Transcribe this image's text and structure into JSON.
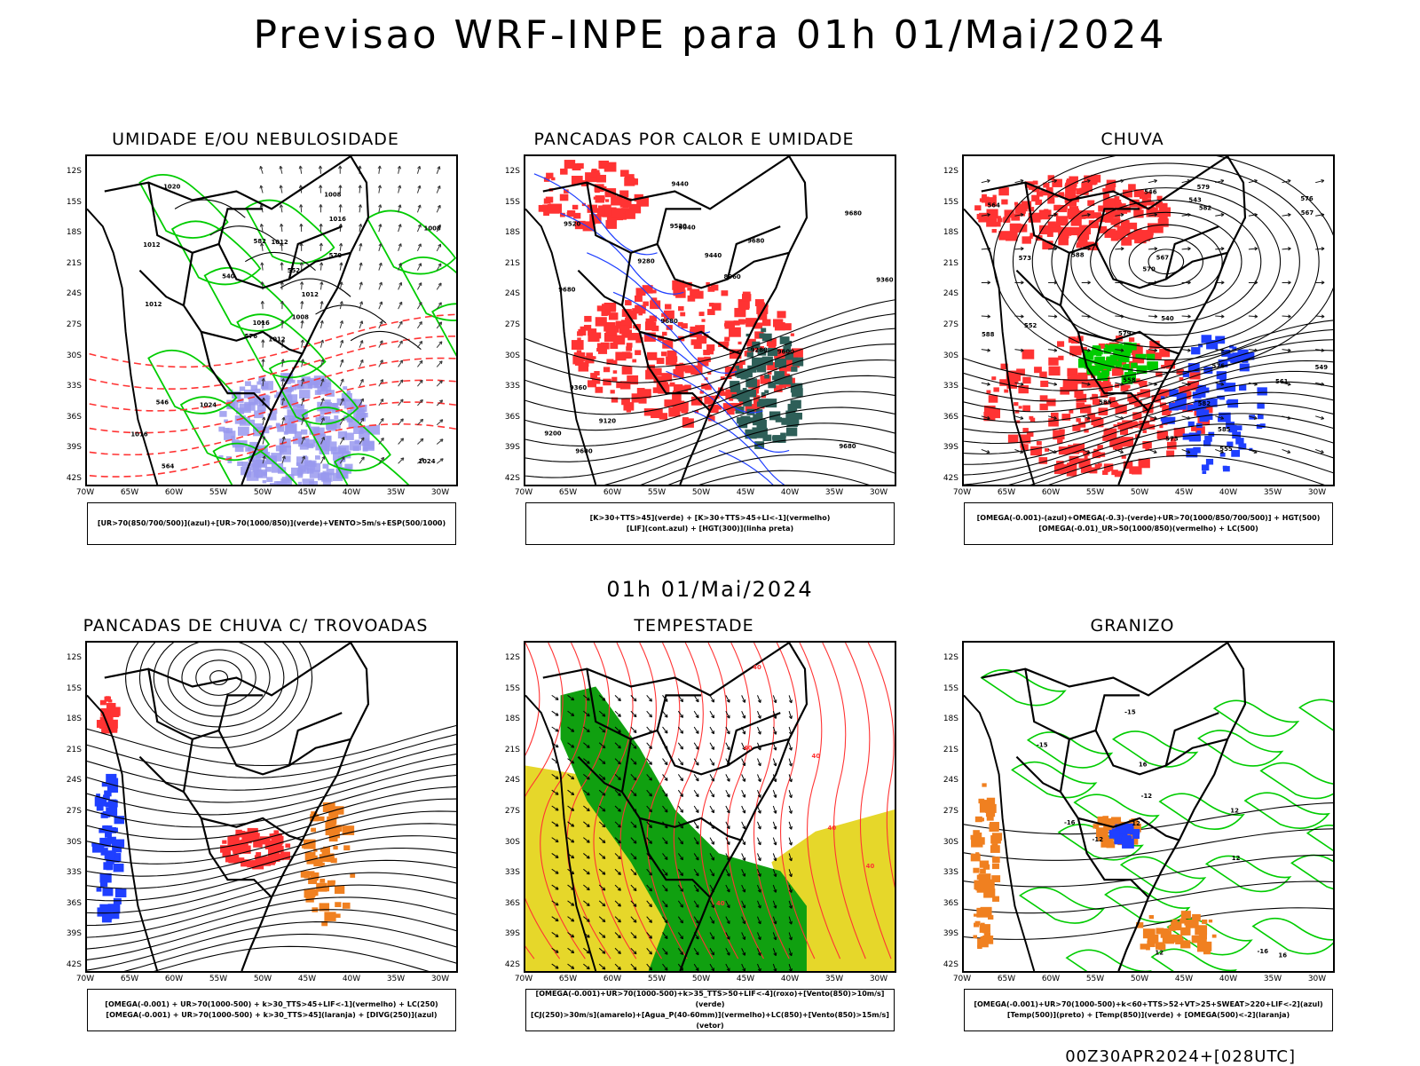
{
  "main_title": "Previsao WRF-INPE  para 01h 01/Mai/2024",
  "mid_date": "01h 01/Mai/2024",
  "footer": "00Z30APR2024+[028UTC]",
  "lat_labels": [
    "12S",
    "15S",
    "18S",
    "21S",
    "24S",
    "27S",
    "30S",
    "33S",
    "36S",
    "39S",
    "42S"
  ],
  "lon_labels": [
    "70W",
    "65W",
    "60W",
    "55W",
    "50W",
    "45W",
    "40W",
    "35W",
    "30W"
  ],
  "colors": {
    "frame": "#000000",
    "humidity_green": "#00cc00",
    "humidity_blue": "#9999ee",
    "convection_red": "#ff3333",
    "lif_blue": "#1f3fff",
    "dark_teal": "#2e5f58",
    "storm_yellow": "#e6d72a",
    "storm_green": "#10a010",
    "orange": "#f08020"
  },
  "panels": [
    {
      "title": "UMIDADE E/OU NEBULOSIDADE",
      "legend": [
        "[UR>70(850/700/500)](azul)+[UR>70(1000/850)](verde)+VENTO>5m/s+ESP(500/1000)"
      ],
      "contour_labels": [
        "1012",
        "1012",
        "1016",
        "1016",
        "1012",
        "1024",
        "1008",
        "1012",
        "1016",
        "1008",
        "1020",
        "1024",
        "1012",
        "1008",
        "576",
        "570",
        "564",
        "582",
        "552",
        "546",
        "540"
      ]
    },
    {
      "title": "PANCADAS POR CALOR E UMIDADE",
      "legend": [
        "[K>30+TTS>45](verde) + [K>30+TTS>45+LI<-1](vermelho)",
        "[LIF](cont.azul) + [HGT(300)](linha preta)"
      ],
      "contour_labels": [
        "9680",
        "9680",
        "9680",
        "9680",
        "9680",
        "9600",
        "9520",
        "9440",
        "9360",
        "9280",
        "9200",
        "9120",
        "9040",
        "8960",
        "9600",
        "9520",
        "9440",
        "9360",
        "9280"
      ]
    },
    {
      "title": "CHUVA",
      "legend": [
        "[OMEGA(-0.001)-(azul)+OMEGA(-0.3)-(verde)+UR>70(1000/850/700/500)] + HGT(500)",
        "[OMEGA(-0.01)_UR>50(1000/850)(vermelho) + LC(500)"
      ],
      "contour_labels": [
        "588",
        "588",
        "585",
        "582",
        "579",
        "576",
        "573",
        "570",
        "567",
        "564",
        "561",
        "558",
        "555",
        "552",
        "549",
        "546",
        "543",
        "540",
        "585",
        "582",
        "579",
        "576",
        "573",
        "567"
      ]
    },
    {
      "title": "PANCADAS DE CHUVA C/ TROVOADAS",
      "legend": [
        "[OMEGA(-0.001) + UR>70(1000-500) + k>30_TTS>45+LIF<-1](vermelho) + LC(250)",
        "[OMEGA(-0.001) + UR>70(1000-500) + k>30_TTS>45](laranja) + [DIVG(250)](azul)"
      ],
      "contour_labels": []
    },
    {
      "title": "TEMPESTADE",
      "legend": [
        "[OMEGA(-0.001)+UR>70(1000-500)+k>35_TTS>50+LIF<-4](roxo)+[Vento(850)>10m/s](verde)",
        "[CJ(250)>30m/s](amarelo)+[Agua_P(40-60mm)](vermelho)+LC(850)+[Vento(850)>15m/s](vetor)"
      ],
      "contour_labels": [
        "40",
        "40",
        "40",
        "40",
        "40",
        "40"
      ]
    },
    {
      "title": "GRANIZO",
      "legend": [
        "[OMEGA(-0.001)+UR>70(1000-500)+k<60+TTS>52+VT>25+SWEAT>220+LIF<-2](azul)",
        "[Temp(500)](preto) + [Temp(850)](verde) + [OMEGA(500)<-2](laranja)"
      ],
      "contour_labels": [
        "16",
        "16",
        "12",
        "12",
        "12",
        "12",
        "-12",
        "-12",
        "-16",
        "-16",
        "-15",
        "-15"
      ]
    }
  ]
}
